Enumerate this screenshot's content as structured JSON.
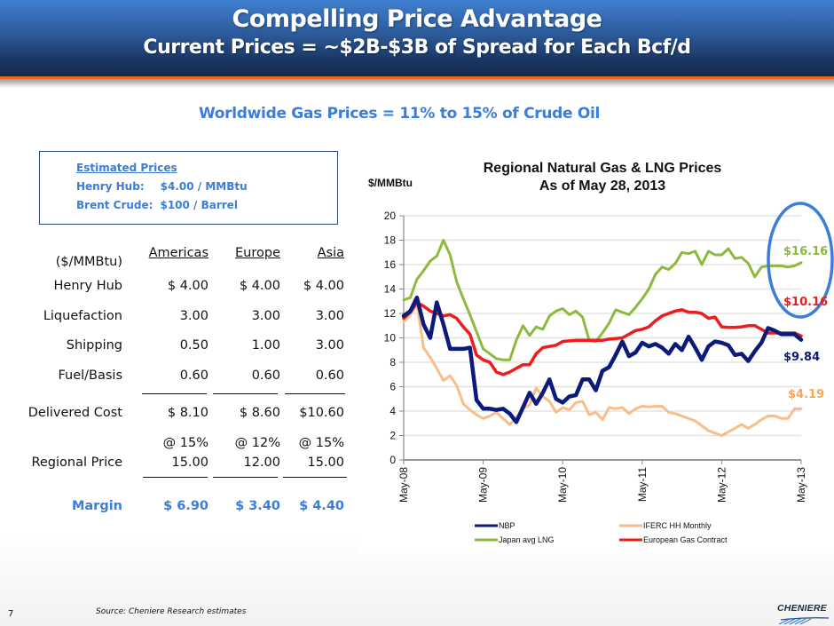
{
  "header": {
    "title": "Compelling Price Advantage",
    "subtitle": "Current Prices = ~$2B-$3B of Spread for Each Bcf/d"
  },
  "headline": "Worldwide Gas Prices = 11% to 15% of Crude Oil",
  "estimates": {
    "title": "Estimated Prices",
    "henry_hub_label": "Henry Hub:",
    "henry_hub_value": "$4.00 / MMBtu",
    "brent_label": "Brent Crude:",
    "brent_value": "$100 / Barrel"
  },
  "cost_table": {
    "unit": "($/MMBtu)",
    "columns": [
      "Americas",
      "Europe",
      "Asia"
    ],
    "rows": [
      {
        "label": "Henry Hub",
        "values": [
          "$ 4.00",
          "$ 4.00",
          "$ 4.00"
        ]
      },
      {
        "label": "Liquefaction",
        "values": [
          "3.00",
          "3.00",
          "3.00"
        ]
      },
      {
        "label": "Shipping",
        "values": [
          "0.50",
          "1.00",
          "3.00"
        ]
      },
      {
        "label": "Fuel/Basis",
        "values": [
          "0.60",
          "0.60",
          "0.60"
        ]
      }
    ],
    "delivered": {
      "label": "Delivered Cost",
      "values": [
        "$ 8.10",
        "$ 8.60",
        "$10.60"
      ]
    },
    "oil_pct": [
      "@ 15%",
      "@ 12%",
      "@ 15%"
    ],
    "regional": {
      "label": "Regional Price",
      "values": [
        "15.00",
        "12.00",
        "15.00"
      ]
    },
    "margin": {
      "label": "Margin",
      "values": [
        "$ 6.90",
        "$ 3.40",
        "$ 4.40"
      ]
    }
  },
  "chart_data": {
    "type": "line",
    "title": "Regional Natural Gas & LNG Prices",
    "subtitle": "As of May 28, 2013",
    "ylabel": "$/MMBtu",
    "xlabel": "",
    "ylim": [
      0,
      20
    ],
    "yticks": [
      0,
      2,
      4,
      6,
      8,
      10,
      12,
      14,
      16,
      18,
      20
    ],
    "xticks": [
      "May-08",
      "May-09",
      "May-10",
      "May-11",
      "May-12",
      "May-13"
    ],
    "x_start": "May-08",
    "x_end": "May-13",
    "x_frequency": "monthly",
    "grid": true,
    "legend_position": "bottom",
    "series": [
      {
        "name": "Japan avg LNG",
        "color": "#8db93f",
        "values": [
          13.1,
          13.3,
          14.8,
          15.5,
          16.3,
          16.7,
          18.0,
          16.8,
          14.6,
          13.2,
          11.9,
          10.5,
          9.1,
          8.7,
          8.3,
          8.2,
          8.2,
          9.8,
          11.0,
          10.2,
          10.9,
          10.7,
          11.8,
          12.2,
          12.4,
          11.9,
          12.2,
          11.7,
          9.8,
          9.7,
          10.4,
          11.2,
          12.3,
          12.1,
          11.9,
          12.5,
          13.2,
          14.0,
          15.2,
          15.8,
          15.6,
          16.1,
          17.0,
          16.9,
          17.1,
          16.0,
          17.1,
          16.8,
          16.8,
          17.3,
          16.5,
          16.6,
          16.1,
          15.0,
          15.8,
          15.9,
          15.9,
          15.9,
          15.8,
          15.9,
          16.16
        ]
      },
      {
        "name": "European Gas Contract",
        "color": "#ee1c1c",
        "values": [
          11.6,
          12.1,
          12.9,
          12.6,
          12.2,
          12.0,
          11.8,
          11.9,
          11.6,
          10.9,
          10.3,
          8.6,
          8.2,
          8.0,
          7.2,
          7.0,
          7.2,
          7.5,
          7.8,
          7.8,
          8.7,
          9.2,
          9.3,
          9.4,
          9.7,
          9.75,
          9.8,
          9.8,
          9.8,
          9.8,
          9.8,
          9.9,
          9.95,
          10.0,
          10.3,
          10.6,
          10.7,
          10.9,
          11.4,
          11.8,
          12.0,
          12.2,
          12.3,
          12.1,
          12.1,
          12.0,
          11.6,
          11.7,
          10.9,
          10.85,
          10.85,
          10.9,
          11.0,
          11.0,
          10.7,
          10.4,
          10.4,
          10.4,
          10.4,
          10.4,
          10.16
        ]
      },
      {
        "name": "NBP",
        "color": "#0c1a7a",
        "values": [
          11.8,
          12.2,
          13.3,
          11.1,
          10.0,
          12.9,
          11.1,
          9.1,
          9.1,
          9.1,
          9.2,
          4.9,
          4.2,
          4.2,
          4.1,
          4.2,
          3.8,
          3.1,
          4.3,
          5.5,
          4.6,
          5.5,
          6.6,
          5.0,
          4.7,
          5.2,
          5.3,
          6.6,
          6.6,
          5.7,
          7.3,
          7.6,
          8.6,
          9.7,
          8.5,
          8.8,
          9.6,
          9.3,
          9.5,
          9.2,
          8.7,
          9.5,
          9.0,
          10.1,
          9.2,
          8.2,
          9.3,
          9.7,
          9.6,
          9.4,
          8.6,
          8.7,
          8.1,
          8.9,
          9.6,
          10.8,
          10.6,
          10.3,
          10.3,
          10.3,
          9.84
        ]
      },
      {
        "name": "IFERC HH Monthly",
        "color": "#f9bd8a",
        "values": [
          11.3,
          11.9,
          12.8,
          9.2,
          8.4,
          7.5,
          6.5,
          6.9,
          6.1,
          4.6,
          4.1,
          3.7,
          3.4,
          3.6,
          3.9,
          3.4,
          2.9,
          3.5,
          4.2,
          4.5,
          5.9,
          5.2,
          4.8,
          3.9,
          4.3,
          4.1,
          4.7,
          4.8,
          3.7,
          3.9,
          3.3,
          4.3,
          4.2,
          4.3,
          3.8,
          4.2,
          4.4,
          4.35,
          4.4,
          4.4,
          3.9,
          3.8,
          3.6,
          3.4,
          3.2,
          2.8,
          2.4,
          2.2,
          2.0,
          2.3,
          2.6,
          2.9,
          2.6,
          2.9,
          3.3,
          3.6,
          3.6,
          3.4,
          3.4,
          4.2,
          4.19
        ]
      }
    ],
    "legend": [
      "NBP",
      "IFERC HH Monthly",
      "Japan avg LNG",
      "European Gas Contract"
    ],
    "annotations": [
      {
        "text": "$16.16",
        "series": "Japan avg LNG",
        "color": "#8db93f"
      },
      {
        "text": "$10.16",
        "series": "European Gas Contract",
        "color": "#ee1c1c"
      },
      {
        "text": "$9.84",
        "series": "NBP",
        "color": "#0c1a7a"
      },
      {
        "text": "$4.19",
        "series": "IFERC HH Monthly",
        "color": "#f5a85a"
      }
    ],
    "highlight_color": "#3b7dd8"
  },
  "footer": {
    "page_number": "7",
    "source": "Source: Cheniere Research estimates",
    "logo_text": "CHENIERE"
  }
}
